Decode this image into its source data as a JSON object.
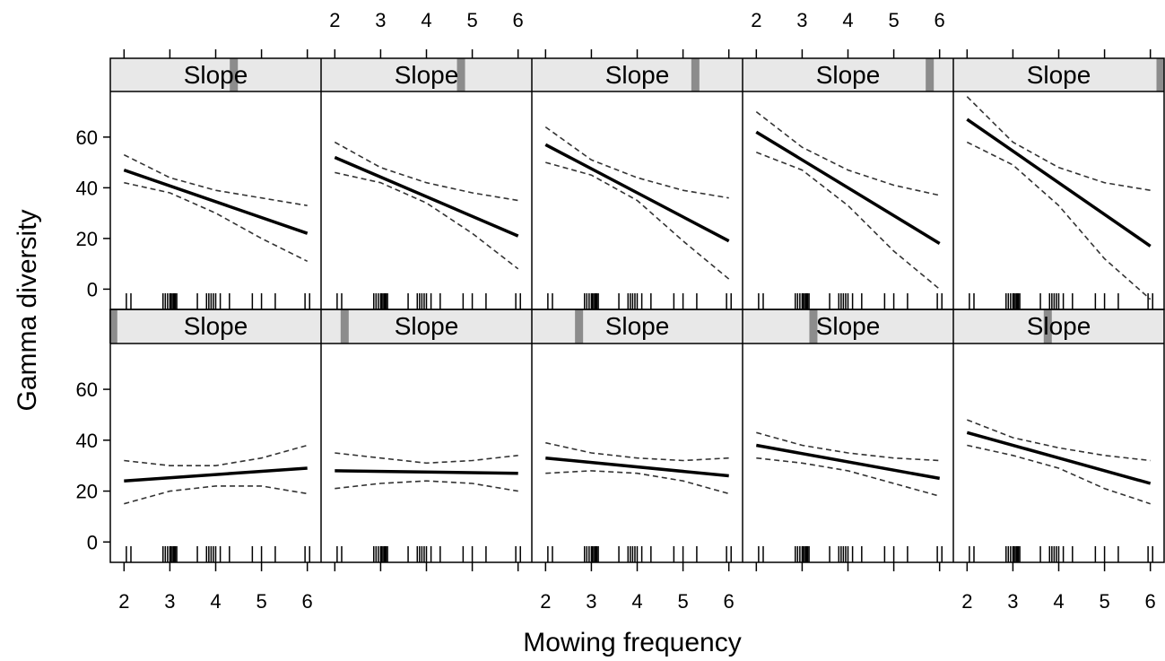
{
  "chart_data": {
    "type": "line",
    "xlabel": "Mowing frequency",
    "ylabel": "Gamma diversity",
    "xlim": [
      1.7,
      6.3
    ],
    "ylim": [
      -8,
      78
    ],
    "x_ticks": [
      2,
      3,
      4,
      5,
      6
    ],
    "y_ticks": [
      0,
      20,
      40,
      60
    ],
    "layout": {
      "rows": 2,
      "cols": 5
    },
    "rug_x": [
      2.05,
      2.15,
      2.85,
      2.9,
      2.95,
      3.0,
      3.02,
      3.05,
      3.08,
      3.1,
      3.12,
      3.15,
      3.6,
      3.8,
      3.85,
      3.9,
      3.95,
      4.0,
      4.1,
      4.3,
      4.8,
      5.0,
      5.3,
      5.95,
      6.05
    ],
    "panels": [
      {
        "strip": "Slope",
        "slope_marker": 0.586,
        "fit": [
          [
            2,
            47
          ],
          [
            6,
            22
          ]
        ],
        "ci_upper": [
          [
            2,
            53
          ],
          [
            3,
            44
          ],
          [
            4,
            39
          ],
          [
            5,
            36
          ],
          [
            6,
            33
          ]
        ],
        "ci_lower": [
          [
            2,
            42
          ],
          [
            3,
            38
          ],
          [
            4,
            30
          ],
          [
            5,
            20
          ],
          [
            6,
            11
          ]
        ]
      },
      {
        "strip": "Slope",
        "slope_marker": 0.664,
        "fit": [
          [
            2,
            52
          ],
          [
            6,
            21
          ]
        ],
        "ci_upper": [
          [
            2,
            58
          ],
          [
            3,
            48
          ],
          [
            4,
            42
          ],
          [
            5,
            38
          ],
          [
            6,
            35
          ]
        ],
        "ci_lower": [
          [
            2,
            46
          ],
          [
            3,
            42
          ],
          [
            4,
            34
          ],
          [
            5,
            22
          ],
          [
            6,
            8
          ]
        ]
      },
      {
        "strip": "Slope",
        "slope_marker": 0.776,
        "fit": [
          [
            2,
            57
          ],
          [
            6,
            19
          ]
        ],
        "ci_upper": [
          [
            2,
            64
          ],
          [
            3,
            51
          ],
          [
            4,
            44
          ],
          [
            5,
            39
          ],
          [
            6,
            36
          ]
        ],
        "ci_lower": [
          [
            2,
            50
          ],
          [
            3,
            45
          ],
          [
            4,
            35
          ],
          [
            5,
            19
          ],
          [
            6,
            4
          ]
        ]
      },
      {
        "strip": "Slope",
        "slope_marker": 0.888,
        "fit": [
          [
            2,
            62
          ],
          [
            6,
            18
          ]
        ],
        "ci_upper": [
          [
            2,
            70
          ],
          [
            3,
            56
          ],
          [
            4,
            47
          ],
          [
            5,
            41
          ],
          [
            6,
            37
          ]
        ],
        "ci_lower": [
          [
            2,
            54
          ],
          [
            3,
            47
          ],
          [
            4,
            33
          ],
          [
            5,
            15
          ],
          [
            6,
            0
          ]
        ]
      },
      {
        "strip": "Slope",
        "slope_marker": 0.983,
        "fit": [
          [
            2,
            67
          ],
          [
            6,
            17
          ]
        ],
        "ci_upper": [
          [
            2,
            76
          ],
          [
            3,
            58
          ],
          [
            4,
            48
          ],
          [
            5,
            42
          ],
          [
            6,
            39
          ]
        ],
        "ci_lower": [
          [
            2,
            58
          ],
          [
            3,
            49
          ],
          [
            4,
            33
          ],
          [
            5,
            12
          ],
          [
            6,
            -4
          ]
        ]
      },
      {
        "strip": "Slope",
        "slope_marker": 0.014,
        "fit": [
          [
            2,
            24
          ],
          [
            6,
            29
          ]
        ],
        "ci_upper": [
          [
            2,
            32
          ],
          [
            3,
            30
          ],
          [
            4,
            30
          ],
          [
            5,
            33
          ],
          [
            6,
            38
          ]
        ],
        "ci_lower": [
          [
            2,
            15
          ],
          [
            3,
            20
          ],
          [
            4,
            22
          ],
          [
            5,
            22
          ],
          [
            6,
            19
          ]
        ]
      },
      {
        "strip": "Slope",
        "slope_marker": 0.112,
        "fit": [
          [
            2,
            28
          ],
          [
            6,
            27
          ]
        ],
        "ci_upper": [
          [
            2,
            35
          ],
          [
            3,
            33
          ],
          [
            4,
            31
          ],
          [
            5,
            32
          ],
          [
            6,
            34
          ]
        ],
        "ci_lower": [
          [
            2,
            21
          ],
          [
            3,
            23
          ],
          [
            4,
            24
          ],
          [
            5,
            23
          ],
          [
            6,
            20
          ]
        ]
      },
      {
        "strip": "Slope",
        "slope_marker": 0.224,
        "fit": [
          [
            2,
            33
          ],
          [
            6,
            26
          ]
        ],
        "ci_upper": [
          [
            2,
            39
          ],
          [
            3,
            35
          ],
          [
            4,
            33
          ],
          [
            5,
            32
          ],
          [
            6,
            33
          ]
        ],
        "ci_lower": [
          [
            2,
            27
          ],
          [
            3,
            28
          ],
          [
            4,
            27
          ],
          [
            5,
            24
          ],
          [
            6,
            19
          ]
        ]
      },
      {
        "strip": "Slope",
        "slope_marker": 0.336,
        "fit": [
          [
            2,
            38
          ],
          [
            6,
            25
          ]
        ],
        "ci_upper": [
          [
            2,
            43
          ],
          [
            3,
            38
          ],
          [
            4,
            35
          ],
          [
            5,
            33
          ],
          [
            6,
            32
          ]
        ],
        "ci_lower": [
          [
            2,
            33
          ],
          [
            3,
            31
          ],
          [
            4,
            28
          ],
          [
            5,
            23
          ],
          [
            6,
            18
          ]
        ]
      },
      {
        "strip": "Slope",
        "slope_marker": 0.448,
        "fit": [
          [
            2,
            43
          ],
          [
            6,
            23
          ]
        ],
        "ci_upper": [
          [
            2,
            48
          ],
          [
            3,
            41
          ],
          [
            4,
            37
          ],
          [
            5,
            34
          ],
          [
            6,
            32
          ]
        ],
        "ci_lower": [
          [
            2,
            38
          ],
          [
            3,
            34
          ],
          [
            4,
            29
          ],
          [
            5,
            21
          ],
          [
            6,
            15
          ]
        ]
      }
    ]
  }
}
